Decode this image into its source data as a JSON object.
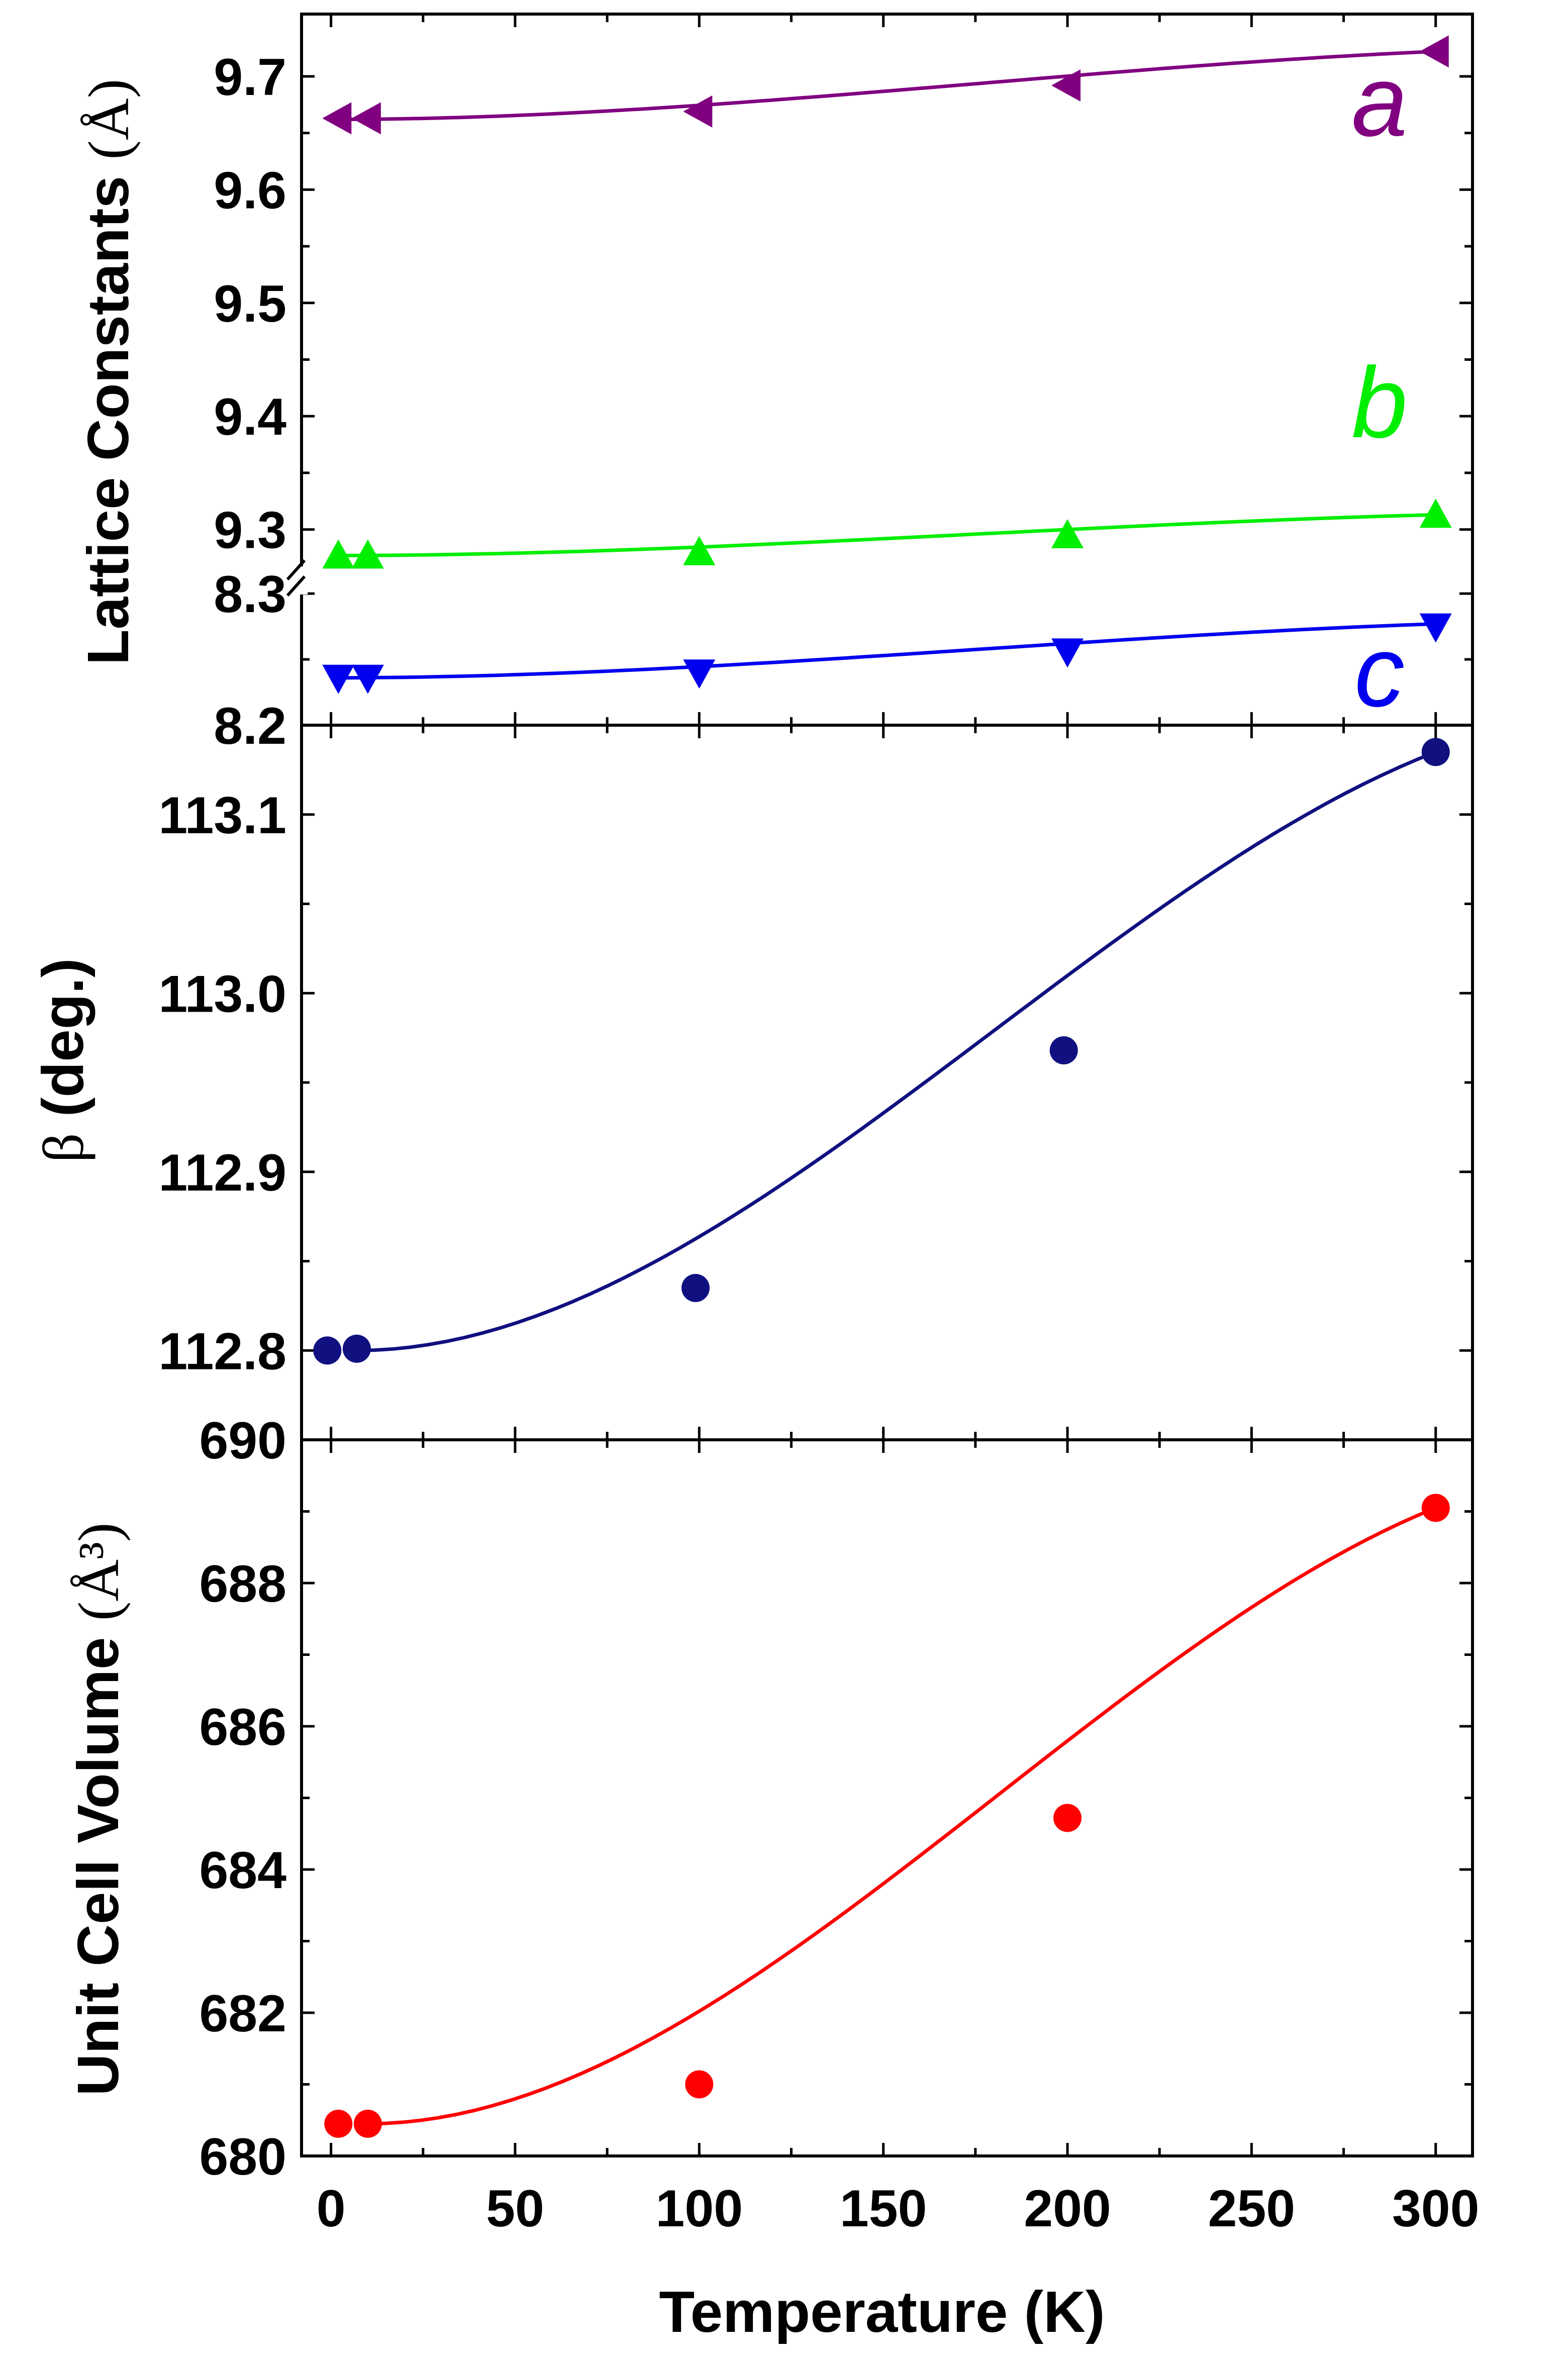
{
  "chart_data": [
    {
      "type": "line",
      "panel": "top",
      "ylabel": "Lattice Constants",
      "ylabel_unit": "(Å)",
      "broken_axis": true,
      "y_ticks_upper": [
        "9.3",
        "9.4",
        "9.5",
        "9.6",
        "9.7"
      ],
      "y_ticks_lower": [
        "8.2",
        "8.3"
      ],
      "ylim_upper": [
        9.255,
        9.755
      ],
      "ylim_lower": [
        8.2,
        8.31
      ],
      "series": [
        {
          "name": "a",
          "color": "#800080",
          "marker": "triangle-left",
          "x": [
            2,
            10,
            100,
            200,
            300
          ],
          "y": [
            9.663,
            9.663,
            9.669,
            9.692,
            9.722
          ],
          "fit_x": [
            0,
            300
          ],
          "fit": [
            9.662,
            9.722
          ]
        },
        {
          "name": "b",
          "color": "#00ee00",
          "marker": "triangle-up",
          "x": [
            2,
            10,
            100,
            200,
            300
          ],
          "y": [
            9.277,
            9.277,
            9.28,
            9.295,
            9.313
          ],
          "fit_x": [
            0,
            300
          ],
          "fit": [
            9.277,
            9.313
          ]
        },
        {
          "name": "c",
          "color": "#0000ee",
          "marker": "triangle-down",
          "x": [
            2,
            10,
            100,
            200,
            300
          ],
          "y": [
            8.236,
            8.236,
            8.24,
            8.256,
            8.275
          ],
          "fit_x": [
            0,
            300
          ],
          "fit": [
            8.236,
            8.277
          ]
        }
      ]
    },
    {
      "type": "scatter",
      "panel": "middle",
      "ylabel_symbol": "β",
      "ylabel": "(deg.)",
      "y_ticks": [
        "112.8",
        "112.9",
        "113.0",
        "113.1"
      ],
      "ylim": [
        112.75,
        113.15
      ],
      "series": [
        {
          "color": "#101080",
          "marker": "circle",
          "x": [
            -1,
            7,
            99,
            199,
            300
          ],
          "y": [
            112.8,
            112.801,
            112.835,
            112.968,
            113.135
          ],
          "fit_x": [
            7,
            300
          ],
          "fit": [
            112.8,
            113.135
          ]
        }
      ]
    },
    {
      "type": "scatter",
      "panel": "bottom",
      "ylabel": "Unit Cell Volume",
      "ylabel_unit": "(Å³)",
      "y_ticks": [
        "680",
        "682",
        "684",
        "686",
        "688",
        "690"
      ],
      "ylim": [
        680,
        690
      ],
      "xlabel": "Temperature (K)",
      "x_ticks": [
        "0",
        "50",
        "100",
        "150",
        "200",
        "250",
        "300"
      ],
      "xlim": [
        -8,
        310
      ],
      "series": [
        {
          "color": "#ff0000",
          "marker": "circle",
          "x": [
            2,
            10,
            100,
            200,
            300
          ],
          "y": [
            680.45,
            680.45,
            681.0,
            684.72,
            689.05
          ],
          "fit_x": [
            10,
            300
          ],
          "fit": [
            680.45,
            689.05
          ]
        }
      ]
    }
  ]
}
